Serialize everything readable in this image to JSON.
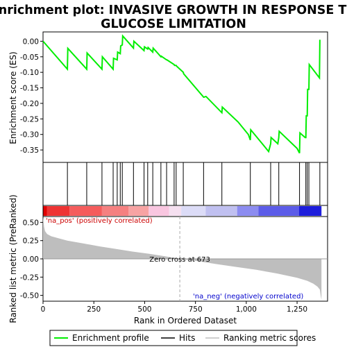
{
  "chart_data": {
    "type": "line",
    "title_lines": [
      "Enrichment plot: INVASIVE GROWTH IN RESPONSE TO",
      "GLUCOSE LIMITATION"
    ],
    "top_panel": {
      "ylabel": "Enrichment score (ES)",
      "ylim": [
        -0.39,
        0.03
      ],
      "yticks": [
        0.0,
        -0.05,
        -0.1,
        -0.15,
        -0.2,
        -0.25,
        -0.3,
        -0.35
      ],
      "ytick_labels": [
        "0.00",
        "-0.05",
        "-0.10",
        "-0.15",
        "-0.20",
        "-0.25",
        "-0.30",
        "-0.35"
      ],
      "series": [
        {
          "name": "Enrichment profile",
          "color": "#00ee00",
          "x": [
            0,
            120,
            122,
            215,
            217,
            290,
            292,
            345,
            347,
            365,
            367,
            380,
            382,
            390,
            392,
            445,
            447,
            497,
            499,
            515,
            517,
            540,
            542,
            580,
            582,
            608,
            610,
            645,
            647,
            655,
            657,
            690,
            692,
            790,
            792,
            800,
            802,
            880,
            882,
            960,
            1010,
            1020,
            1022,
            1110,
            1120,
            1122,
            1155,
            1160,
            1162,
            1250,
            1262,
            1264,
            1290,
            1293,
            1295,
            1300,
            1302,
            1308,
            1310,
            1360,
            1362
          ],
          "y": [
            0.0,
            -0.09,
            -0.023,
            -0.09,
            -0.038,
            -0.09,
            -0.05,
            -0.09,
            -0.055,
            -0.06,
            -0.035,
            -0.04,
            -0.015,
            -0.012,
            0.017,
            -0.022,
            0.0,
            -0.03,
            -0.018,
            -0.025,
            -0.02,
            -0.035,
            -0.022,
            -0.05,
            -0.048,
            -0.06,
            -0.06,
            -0.075,
            -0.078,
            -0.078,
            -0.08,
            -0.1,
            -0.105,
            -0.18,
            -0.18,
            -0.178,
            -0.178,
            -0.23,
            -0.212,
            -0.26,
            -0.3,
            -0.318,
            -0.285,
            -0.355,
            -0.33,
            -0.31,
            -0.33,
            -0.31,
            -0.29,
            -0.345,
            -0.36,
            -0.295,
            -0.31,
            -0.31,
            -0.24,
            -0.24,
            -0.155,
            -0.155,
            -0.075,
            -0.118,
            0.005
          ]
        }
      ]
    },
    "hits_panel": {
      "legend_label": "Hits",
      "hit_positions": [
        120,
        215,
        290,
        345,
        365,
        380,
        390,
        445,
        497,
        515,
        540,
        580,
        608,
        645,
        655,
        690,
        790,
        880,
        1020,
        1120,
        1160,
        1262,
        1293,
        1300,
        1308,
        1362
      ]
    },
    "color_bar": {
      "segments": [
        {
          "from": 0,
          "to": 20,
          "color": "#e00000"
        },
        {
          "from": 20,
          "to": 130,
          "color": "#ee3333"
        },
        {
          "from": 130,
          "to": 290,
          "color": "#f55c5c"
        },
        {
          "from": 290,
          "to": 420,
          "color": "#f58080"
        },
        {
          "from": 420,
          "to": 520,
          "color": "#f7a3a3"
        },
        {
          "from": 520,
          "to": 620,
          "color": "#f9c6e0"
        },
        {
          "from": 620,
          "to": 680,
          "color": "#f5e0f0"
        },
        {
          "from": 680,
          "to": 800,
          "color": "#dcdcf7"
        },
        {
          "from": 800,
          "to": 955,
          "color": "#c0c0f0"
        },
        {
          "from": 955,
          "to": 1060,
          "color": "#8c8cf0"
        },
        {
          "from": 1060,
          "to": 1260,
          "color": "#5c5ce8"
        },
        {
          "from": 1260,
          "to": 1370,
          "color": "#1e1edc"
        }
      ]
    },
    "bottom_panel": {
      "ylabel": "Ranked list metric (PreRanked)",
      "xlabel": "Rank in Ordered Dataset",
      "ylim": [
        -0.58,
        0.58
      ],
      "yticks": [
        0.5,
        0.25,
        0.0,
        -0.25,
        -0.5
      ],
      "ytick_labels": [
        "0.50",
        "0.25",
        "0.00",
        "-0.25",
        "-0.50"
      ],
      "xlim": [
        0,
        1400
      ],
      "xticks": [
        0,
        250,
        500,
        750,
        1000,
        1250
      ],
      "xtick_labels": [
        "0",
        "250",
        "500",
        "750",
        "1,000",
        "1,250"
      ],
      "fill_color": "#bebebe",
      "metric_x": [
        0,
        5,
        10,
        20,
        40,
        80,
        120,
        200,
        280,
        360,
        440,
        520,
        600,
        673,
        760,
        850,
        950,
        1050,
        1150,
        1250,
        1300,
        1330,
        1350,
        1362,
        1366,
        1370
      ],
      "metric_y": [
        0.57,
        0.44,
        0.38,
        0.34,
        0.31,
        0.28,
        0.25,
        0.21,
        0.17,
        0.135,
        0.1,
        0.07,
        0.035,
        0.0,
        -0.03,
        -0.07,
        -0.11,
        -0.15,
        -0.2,
        -0.26,
        -0.3,
        -0.34,
        -0.38,
        -0.42,
        -0.5,
        -0.56
      ],
      "zero_cross_rank": 673,
      "annotations": {
        "pos_label": "'na_pos' (positively correlated)",
        "neg_label": "'na_neg' (negatively correlated)",
        "zero_label": "Zero cross at 673"
      }
    },
    "legend": [
      {
        "label": "Enrichment profile",
        "color": "#00ee00"
      },
      {
        "label": "Hits",
        "color": "#000000"
      },
      {
        "label": "Ranking metric scores",
        "color": "#bebebe"
      }
    ],
    "grid": false
  }
}
